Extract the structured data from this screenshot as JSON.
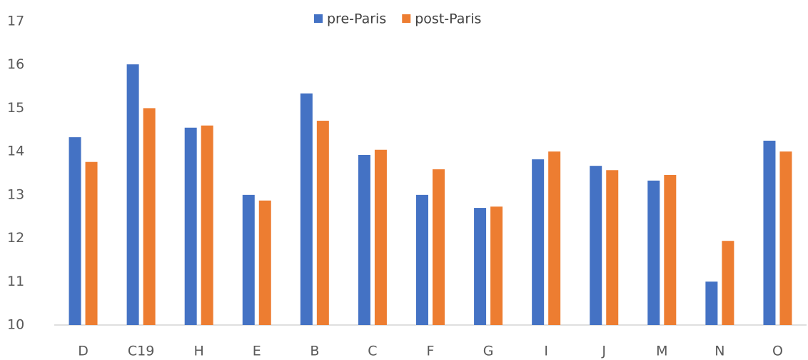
{
  "chart_data": {
    "type": "bar",
    "categories": [
      "D",
      "C19",
      "H",
      "E",
      "B",
      "C",
      "F",
      "G",
      "I",
      "J",
      "M",
      "N",
      "O"
    ],
    "series": [
      {
        "name": "pre-Paris",
        "color": "#4472c4",
        "values": [
          14.33,
          16.01,
          14.55,
          13.0,
          15.34,
          13.92,
          13.0,
          12.7,
          13.82,
          13.67,
          13.33,
          11.0,
          14.25
        ]
      },
      {
        "name": "post-Paris",
        "color": "#ed7d31",
        "values": [
          13.76,
          15.0,
          14.6,
          12.87,
          14.71,
          14.04,
          13.59,
          12.73,
          14.0,
          13.57,
          13.46,
          11.94,
          14.0
        ]
      }
    ],
    "ylim": [
      10,
      17
    ],
    "yticks": [
      10,
      11,
      12,
      13,
      14,
      15,
      16,
      17
    ],
    "legend": "top"
  }
}
